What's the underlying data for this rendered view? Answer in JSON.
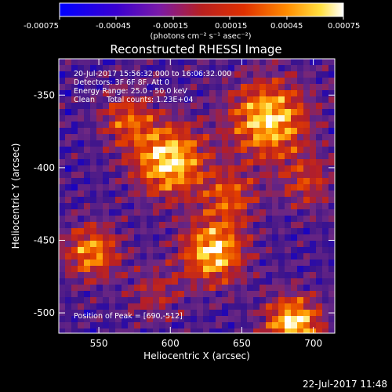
{
  "colorbar": {
    "tick_labels": [
      "-0.00075",
      "-0.00045",
      "-0.00015",
      "0.00015",
      "0.00045",
      "0.00075"
    ],
    "units": "(photons cm⁻² s⁻¹ asec⁻²)",
    "range": [
      -0.00075,
      0.00075
    ]
  },
  "chart_data": {
    "type": "heatmap",
    "title": "Reconstructed RHESSI Image",
    "xlabel": "Heliocentric X (arcsec)",
    "ylabel": "Heliocentric Y (arcsec)",
    "xlim": [
      522,
      715
    ],
    "ylim": [
      -514,
      -325
    ],
    "xticks": [
      550,
      600,
      650,
      700
    ],
    "yticks": [
      -350,
      -400,
      -450,
      -500
    ],
    "peak": {
      "x": 690,
      "y": -512
    },
    "annotations": [
      "20-Jul-2017 15:56:32.000 to 16:06:32.000",
      "Detectors: 3F 6F 8F, Att 0",
      "Energy Range: 25.0 - 50.0 keV",
      "Clean     Total counts: 1.23E+04",
      "Position of Peak = [690,-512]"
    ]
  },
  "footer": {
    "timestamp": "22-Jul-2017 11:48"
  }
}
